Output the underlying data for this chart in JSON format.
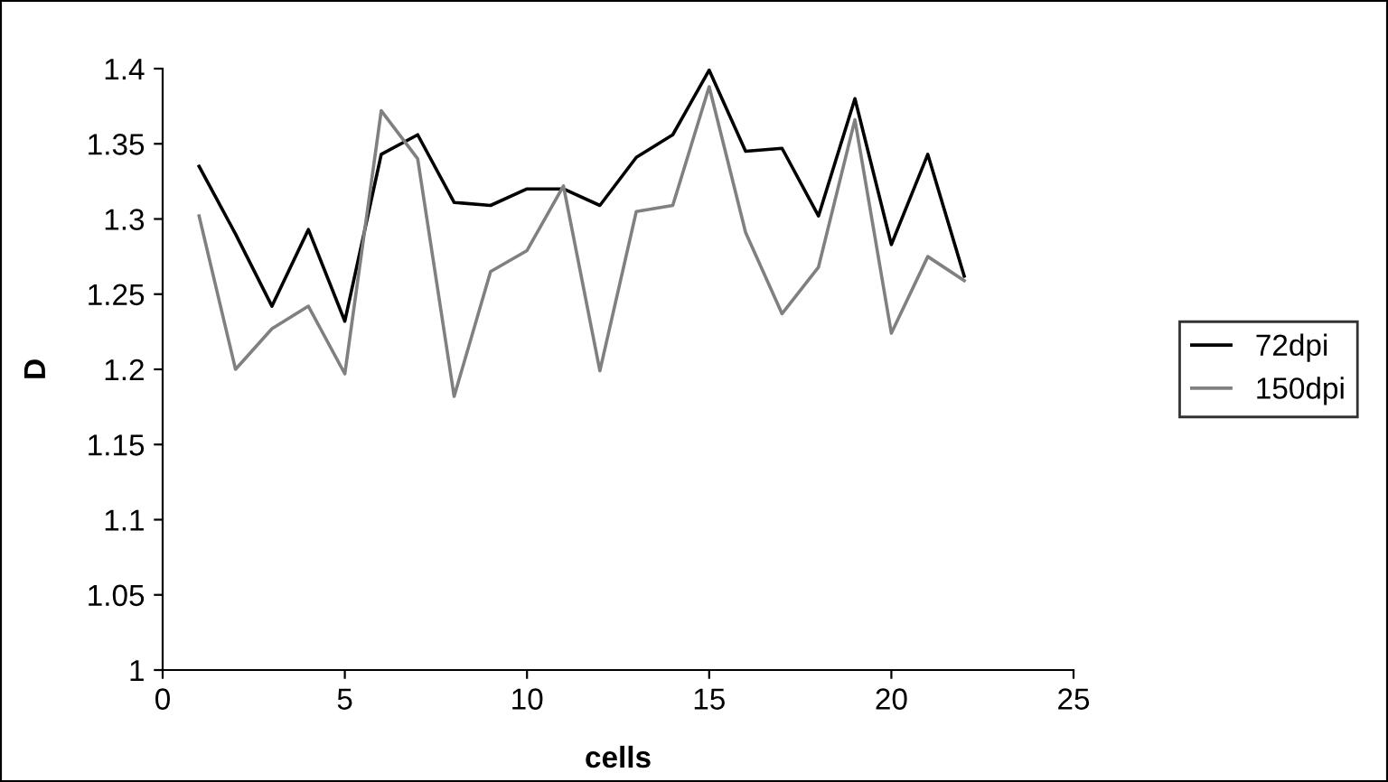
{
  "chart_data": {
    "type": "line",
    "xlabel": "cells",
    "ylabel": "D",
    "x": [
      1,
      2,
      3,
      4,
      5,
      6,
      7,
      8,
      9,
      10,
      11,
      12,
      13,
      14,
      15,
      16,
      17,
      18,
      19,
      20,
      21,
      22
    ],
    "series": [
      {
        "name": "72dpi",
        "color": "#000000",
        "values": [
          1.335,
          1.29,
          1.242,
          1.293,
          1.232,
          1.343,
          1.356,
          1.311,
          1.309,
          1.32,
          1.32,
          1.309,
          1.341,
          1.356,
          1.399,
          1.345,
          1.347,
          1.302,
          1.38,
          1.283,
          1.343,
          1.262
        ]
      },
      {
        "name": "150dpi",
        "color": "#808080",
        "values": [
          1.302,
          1.2,
          1.227,
          1.242,
          1.197,
          1.372,
          1.34,
          1.182,
          1.265,
          1.279,
          1.322,
          1.199,
          1.305,
          1.309,
          1.388,
          1.291,
          1.237,
          1.268,
          1.366,
          1.224,
          1.275,
          1.259
        ]
      }
    ],
    "xlim": [
      0,
      25
    ],
    "xticks": [
      0,
      5,
      10,
      15,
      20,
      25
    ],
    "ylim": [
      1,
      1.4
    ],
    "yticks": [
      1,
      1.05,
      1.1,
      1.15,
      1.2,
      1.25,
      1.3,
      1.35,
      1.4
    ],
    "grid": false,
    "legend": "right",
    "marker": "none",
    "line_style": "solid"
  }
}
